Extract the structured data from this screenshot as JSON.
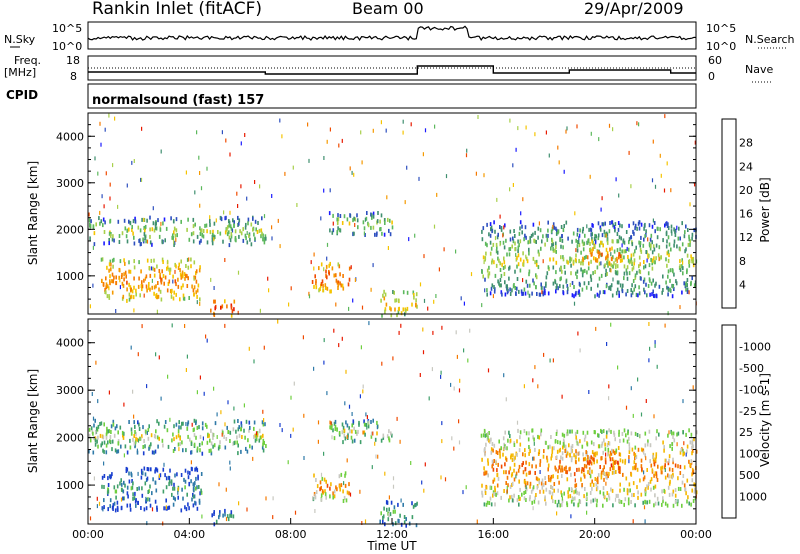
{
  "header": {
    "station": "Rankin Inlet (fitACF)",
    "beam": "Beam 00",
    "date": "29/Apr/2009"
  },
  "summary_panels": {
    "nsky_label": "N.Sky",
    "nsearch_label": "N.Search",
    "noise_ticks": [
      "10^5",
      "10^0"
    ],
    "freq_label": "Freq.",
    "freq_unit": "[MHz]",
    "freq_ticks": [
      "18",
      "8"
    ],
    "nave_label": "Nave",
    "nave_ticks": [
      "60",
      "0"
    ],
    "cpid_label": "CPID",
    "cpid_text": "normalsound (fast) 157"
  },
  "chart_data": [
    {
      "type": "heatmap",
      "name": "power-panel",
      "ylabel": "Slant Range [km]",
      "yticks": [
        "1000",
        "2000",
        "3000",
        "4000"
      ],
      "ylim": [
        180,
        4500
      ],
      "colorbar_label": "Power [dB]",
      "colorbar_ticks": [
        "4",
        "8",
        "12",
        "16",
        "20",
        "24",
        "28"
      ],
      "colorbar_colors": [
        "#1a1aff",
        "#2d4fbf",
        "#3f8f6f",
        "#5cb85c",
        "#a8d04a",
        "#f5c400",
        "#f59a00",
        "#f57a00",
        "#f04a00",
        "#e81a00"
      ],
      "xlim_hours": [
        0,
        24
      ],
      "echo_regions_hours_km": [
        {
          "t": [
            0.0,
            7.0
          ],
          "r": [
            1700,
            2300
          ],
          "level": 4
        },
        {
          "t": [
            0.5,
            4.5
          ],
          "r": [
            500,
            1400
          ],
          "level": 7
        },
        {
          "t": [
            4.8,
            5.8
          ],
          "r": [
            180,
            500
          ],
          "level": 9
        },
        {
          "t": [
            8.8,
            10.3
          ],
          "r": [
            700,
            1300
          ],
          "level": 8
        },
        {
          "t": [
            9.5,
            12.0
          ],
          "r": [
            1900,
            2400
          ],
          "level": 4
        },
        {
          "t": [
            11.5,
            13.0
          ],
          "r": [
            180,
            700
          ],
          "level": 6
        },
        {
          "t": [
            15.5,
            24.0
          ],
          "r": [
            600,
            2200
          ],
          "level": 4
        },
        {
          "t": [
            19.5,
            21.0
          ],
          "r": [
            1200,
            1800
          ],
          "level": 7
        }
      ]
    },
    {
      "type": "heatmap",
      "name": "velocity-panel",
      "ylabel": "Slant Range [km]",
      "yticks": [
        "1000",
        "2000",
        "3000",
        "4000"
      ],
      "ylim": [
        180,
        4500
      ],
      "colorbar_label": "Velocity [m s-1]",
      "colorbar_ticks": [
        "1000",
        "500",
        "100",
        "25",
        "-25",
        "-100",
        "-500",
        "-1000"
      ],
      "colorbar_colors": [
        "#1a3fcf",
        "#2f7aa8",
        "#3f9f6a",
        "#6fcf3f",
        "#c8c8c0",
        "#f5b800",
        "#f57a00",
        "#f04a00",
        "#e81a00"
      ],
      "xlabel": "Time UT",
      "xticks": [
        "00:00",
        "04:00",
        "08:00",
        "12:00",
        "16:00",
        "20:00",
        "00:00"
      ],
      "xlim_hours": [
        0,
        24
      ],
      "echo_regions_hours_km": [
        {
          "t": [
            0.0,
            7.0
          ],
          "r": [
            1700,
            2400
          ],
          "level": 4
        },
        {
          "t": [
            0.5,
            4.5
          ],
          "r": [
            500,
            1400
          ],
          "level": 2
        },
        {
          "t": [
            4.8,
            5.8
          ],
          "r": [
            180,
            500
          ],
          "level": 2
        },
        {
          "t": [
            8.8,
            10.3
          ],
          "r": [
            700,
            1300
          ],
          "level": 6
        },
        {
          "t": [
            9.5,
            12.0
          ],
          "r": [
            1900,
            2400
          ],
          "level": 4
        },
        {
          "t": [
            11.5,
            13.0
          ],
          "r": [
            180,
            700
          ],
          "level": 3
        },
        {
          "t": [
            15.5,
            24.0
          ],
          "r": [
            600,
            2200
          ],
          "level": 6
        },
        {
          "t": [
            19.5,
            21.0
          ],
          "r": [
            1200,
            1800
          ],
          "level": 7
        }
      ]
    }
  ]
}
